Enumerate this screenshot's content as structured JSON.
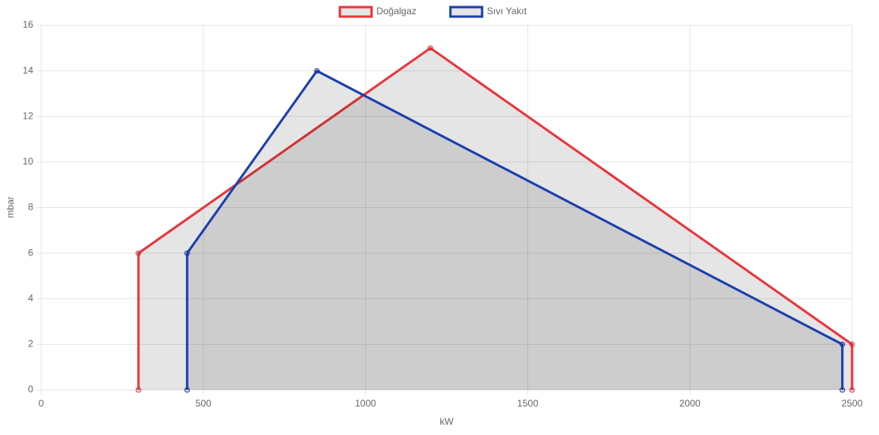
{
  "chart_data": {
    "type": "line",
    "x_label": "kW",
    "y_label": "mbar",
    "series": [
      {
        "name": "Doğalgaz",
        "color": "#e8363c",
        "x": [
          300,
          300,
          1200,
          2500,
          2500
        ],
        "values": [
          0,
          6,
          15,
          2,
          0
        ]
      },
      {
        "name": "Sıvı Yakıt",
        "color": "#1b3fae",
        "x": [
          450,
          450,
          850,
          2470,
          2470
        ],
        "values": [
          0,
          6,
          14,
          2,
          0
        ]
      }
    ],
    "xlim": [
      0,
      2500
    ],
    "xticks": [
      0,
      500,
      1000,
      1500,
      2000,
      2500
    ],
    "ylim": [
      0,
      16
    ],
    "yticks": [
      0,
      2,
      4,
      6,
      8,
      10,
      12,
      14,
      16
    ],
    "grid": true,
    "fill": "rgba(0,0,0,0.1)",
    "legend": "top"
  }
}
